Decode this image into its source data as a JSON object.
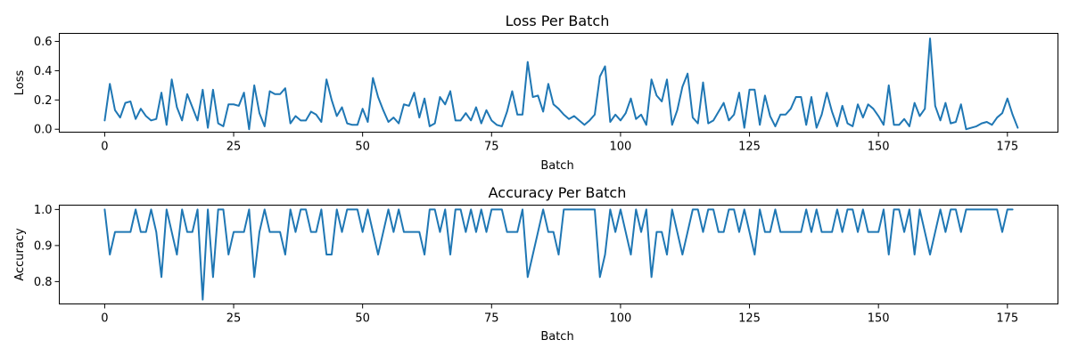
{
  "chart_data": [
    {
      "type": "line",
      "title": "Loss Per Batch",
      "xlabel": "Batch",
      "ylabel": "Loss",
      "xlim": [
        -8.8,
        184.8
      ],
      "ylim": [
        -0.02,
        0.655
      ],
      "xticks": [
        0,
        25,
        50,
        75,
        100,
        125,
        150,
        175
      ],
      "yticks": [
        0.0,
        0.2,
        0.4,
        0.6
      ],
      "ytick_labels": [
        "0.0",
        "0.2",
        "0.4",
        "0.6"
      ],
      "color": "#1f77b4",
      "grid": false,
      "series": [
        {
          "values": [
            0.06,
            0.31,
            0.13,
            0.08,
            0.18,
            0.19,
            0.07,
            0.14,
            0.09,
            0.06,
            0.07,
            0.25,
            0.03,
            0.34,
            0.15,
            0.06,
            0.24,
            0.15,
            0.06,
            0.27,
            0.01,
            0.27,
            0.04,
            0.02,
            0.17,
            0.17,
            0.16,
            0.25,
            0.0,
            0.3,
            0.11,
            0.02,
            0.26,
            0.24,
            0.24,
            0.28,
            0.04,
            0.09,
            0.06,
            0.06,
            0.12,
            0.1,
            0.05,
            0.34,
            0.2,
            0.09,
            0.15,
            0.04,
            0.03,
            0.03,
            0.14,
            0.05,
            0.35,
            0.22,
            0.13,
            0.05,
            0.08,
            0.04,
            0.17,
            0.16,
            0.25,
            0.08,
            0.21,
            0.02,
            0.04,
            0.22,
            0.17,
            0.26,
            0.06,
            0.06,
            0.11,
            0.06,
            0.15,
            0.04,
            0.13,
            0.06,
            0.03,
            0.02,
            0.12,
            0.26,
            0.1,
            0.1,
            0.46,
            0.22,
            0.23,
            0.12,
            0.31,
            0.17,
            0.14,
            0.1,
            0.07,
            0.09,
            0.06,
            0.03,
            0.06,
            0.1,
            0.36,
            0.43,
            0.05,
            0.1,
            0.06,
            0.11,
            0.21,
            0.07,
            0.1,
            0.03,
            0.34,
            0.23,
            0.19,
            0.34,
            0.03,
            0.13,
            0.29,
            0.38,
            0.08,
            0.04,
            0.32,
            0.04,
            0.06,
            0.12,
            0.18,
            0.06,
            0.1,
            0.25,
            0.01,
            0.27,
            0.27,
            0.03,
            0.23,
            0.09,
            0.02,
            0.1,
            0.1,
            0.14,
            0.22,
            0.22,
            0.03,
            0.22,
            0.01,
            0.1,
            0.25,
            0.12,
            0.02,
            0.16,
            0.04,
            0.02,
            0.17,
            0.08,
            0.17,
            0.14,
            0.09,
            0.03,
            0.3,
            0.03,
            0.03,
            0.07,
            0.02,
            0.18,
            0.09,
            0.14,
            0.62,
            0.16,
            0.06,
            0.18,
            0.04,
            0.05,
            0.17,
            0.0,
            0.01,
            0.02,
            0.04,
            0.05,
            0.03,
            0.08,
            0.11,
            0.21,
            0.1,
            0.01
          ]
        }
      ]
    },
    {
      "type": "line",
      "title": "Accuracy Per Batch",
      "xlabel": "Batch",
      "ylabel": "Accuracy",
      "xlim": [
        -8.8,
        184.8
      ],
      "ylim": [
        0.738,
        1.012
      ],
      "xticks": [
        0,
        25,
        50,
        75,
        100,
        125,
        150,
        175
      ],
      "yticks": [
        0.8,
        0.9,
        1.0
      ],
      "ytick_labels": [
        "0.8",
        "0.9",
        "1.0"
      ],
      "color": "#1f77b4",
      "grid": false,
      "series": [
        {
          "values": [
            1.0,
            0.875,
            0.9375,
            0.9375,
            0.9375,
            0.9375,
            1.0,
            0.9375,
            0.9375,
            1.0,
            0.9375,
            0.8125,
            1.0,
            0.9375,
            0.875,
            1.0,
            0.9375,
            0.9375,
            1.0,
            0.75,
            1.0,
            0.8125,
            1.0,
            1.0,
            0.875,
            0.9375,
            0.9375,
            0.9375,
            1.0,
            0.8125,
            0.9375,
            1.0,
            0.9375,
            0.9375,
            0.9375,
            0.875,
            1.0,
            0.9375,
            1.0,
            1.0,
            0.9375,
            0.9375,
            1.0,
            0.875,
            0.875,
            1.0,
            0.9375,
            1.0,
            1.0,
            1.0,
            0.9375,
            1.0,
            0.9375,
            0.875,
            0.9375,
            1.0,
            0.9375,
            1.0,
            0.9375,
            0.9375,
            0.9375,
            0.9375,
            0.875,
            1.0,
            1.0,
            0.9375,
            1.0,
            0.875,
            1.0,
            1.0,
            0.9375,
            1.0,
            0.9375,
            1.0,
            0.9375,
            1.0,
            1.0,
            1.0,
            0.9375,
            0.9375,
            0.9375,
            1.0,
            0.8125,
            0.875,
            0.9375,
            1.0,
            0.9375,
            0.9375,
            0.875,
            1.0,
            1.0,
            1.0,
            1.0,
            1.0,
            1.0,
            1.0,
            0.8125,
            0.875,
            1.0,
            0.9375,
            1.0,
            0.9375,
            0.875,
            1.0,
            0.9375,
            1.0,
            0.8125,
            0.9375,
            0.9375,
            0.875,
            1.0,
            0.9375,
            0.875,
            0.9375,
            1.0,
            1.0,
            0.9375,
            1.0,
            1.0,
            0.9375,
            0.9375,
            1.0,
            1.0,
            0.9375,
            1.0,
            0.9375,
            0.875,
            1.0,
            0.9375,
            0.9375,
            1.0,
            0.9375,
            0.9375,
            0.9375,
            0.9375,
            0.9375,
            1.0,
            0.9375,
            1.0,
            0.9375,
            0.9375,
            0.9375,
            1.0,
            0.9375,
            1.0,
            1.0,
            0.9375,
            1.0,
            0.9375,
            0.9375,
            0.9375,
            1.0,
            0.875,
            1.0,
            1.0,
            0.9375,
            1.0,
            0.875,
            1.0,
            0.9375,
            0.875,
            0.9375,
            1.0,
            0.9375,
            1.0,
            1.0,
            0.9375,
            1.0,
            1.0,
            1.0,
            1.0,
            1.0,
            1.0,
            1.0,
            0.9375,
            1.0,
            1.0
          ]
        }
      ]
    }
  ]
}
